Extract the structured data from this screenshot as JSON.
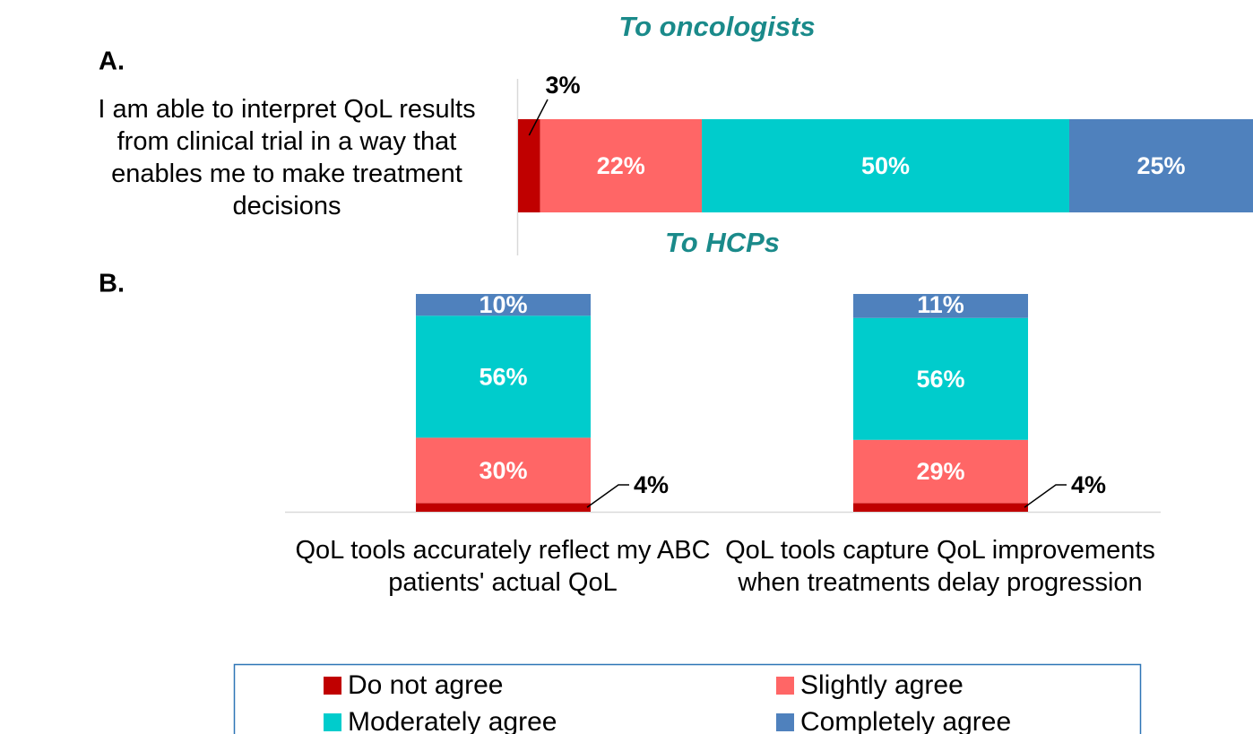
{
  "chart_data": [
    {
      "type": "hbar-stacked",
      "label": "A.",
      "title": "To oncologists",
      "categories": [
        "I am able to interpret QoL results from clinical trial in a way that enables me to make treatment decisions"
      ],
      "xlim": [
        0,
        100
      ],
      "series": [
        {
          "color": "#c00000",
          "values": [
            3
          ],
          "value_labels": [
            "3%"
          ]
        },
        {
          "color": "#ff6666",
          "values": [
            22
          ],
          "value_labels": [
            "22%"
          ]
        },
        {
          "color": "#00cccc",
          "values": [
            50
          ],
          "value_labels": [
            "50%"
          ]
        },
        {
          "color": "#4f81bd",
          "values": [
            25
          ],
          "value_labels": [
            "25%"
          ]
        }
      ]
    },
    {
      "type": "bar-stacked",
      "label": "B.",
      "title": "To HCPs",
      "categories": [
        "QoL tools accurately reflect my ABC patients' actual QoL",
        "QoL tools capture QoL improvements when treatments delay progression"
      ],
      "ylim": [
        0,
        100
      ],
      "series": [
        {
          "name": "Do not agree",
          "color": "#c00000",
          "values": [
            4,
            4
          ],
          "value_labels": [
            "4%",
            "4%"
          ]
        },
        {
          "name": "Slightly agree",
          "color": "#ff6666",
          "values": [
            30,
            29
          ],
          "value_labels": [
            "30%",
            "29%"
          ]
        },
        {
          "name": "Moderately agree",
          "color": "#00cccc",
          "values": [
            56,
            56
          ],
          "value_labels": [
            "56%",
            "56%"
          ]
        },
        {
          "name": "Completely agree",
          "color": "#4f81bd",
          "values": [
            10,
            11
          ],
          "value_labels": [
            "10%",
            "11%"
          ]
        }
      ]
    }
  ]
}
